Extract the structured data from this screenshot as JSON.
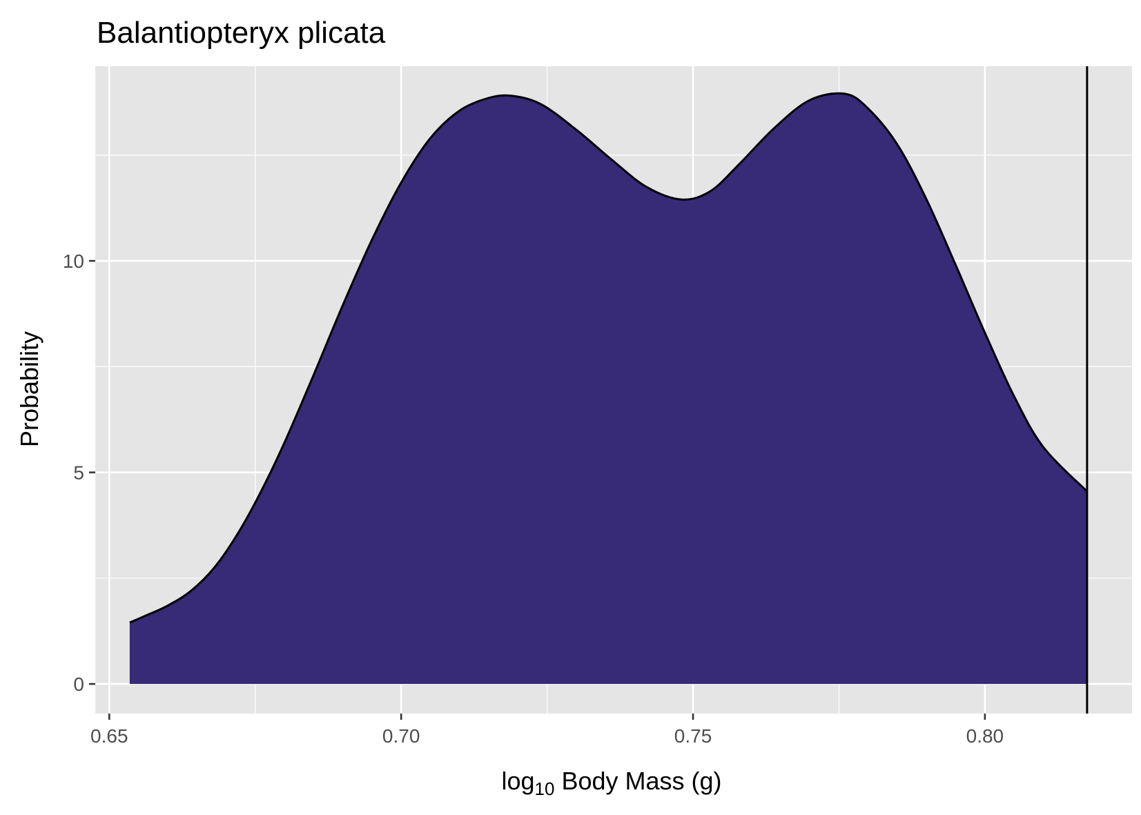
{
  "chart_data": {
    "type": "area",
    "title": "Balantiopteryx plicata",
    "xlabel": {
      "prefix": "log",
      "subscript": "10",
      "suffix": " Body Mass (g)"
    },
    "ylabel": "Probability",
    "xlim": [
      0.6476,
      0.8252
    ],
    "ylim": [
      -0.7,
      14.6
    ],
    "x_ticks": [
      0.65,
      0.7,
      0.75,
      0.8
    ],
    "x_tick_labels": [
      "0.65",
      "0.70",
      "0.75",
      "0.80"
    ],
    "y_ticks": [
      0,
      5,
      10
    ],
    "y_tick_labels": [
      "0",
      "5",
      "10"
    ],
    "x_minor": [
      0.675,
      0.725,
      0.775
    ],
    "y_minor": [
      2.5,
      7.5,
      12.5
    ],
    "grid": true,
    "vline_x": 0.8175,
    "colors": {
      "fill": "#372a76",
      "outline": "#000000",
      "panel": "#e5e5e5",
      "grid": "#ffffff"
    },
    "series": [
      {
        "x": [
          0.6535,
          0.656,
          0.66,
          0.664,
          0.668,
          0.672,
          0.676,
          0.68,
          0.685,
          0.69,
          0.695,
          0.7,
          0.705,
          0.71,
          0.715,
          0.719,
          0.724,
          0.73,
          0.736,
          0.742,
          0.748,
          0.753,
          0.758,
          0.764,
          0.77,
          0.776,
          0.78,
          0.785,
          0.79,
          0.795,
          0.8,
          0.805,
          0.81,
          0.8175
        ],
        "y": [
          1.45,
          1.6,
          1.85,
          2.2,
          2.75,
          3.55,
          4.55,
          5.7,
          7.3,
          8.95,
          10.5,
          11.85,
          12.9,
          13.55,
          13.85,
          13.9,
          13.7,
          13.1,
          12.4,
          11.75,
          11.45,
          11.65,
          12.3,
          13.15,
          13.8,
          13.95,
          13.6,
          12.75,
          11.45,
          9.9,
          8.3,
          6.8,
          5.6,
          4.55
        ]
      }
    ]
  }
}
